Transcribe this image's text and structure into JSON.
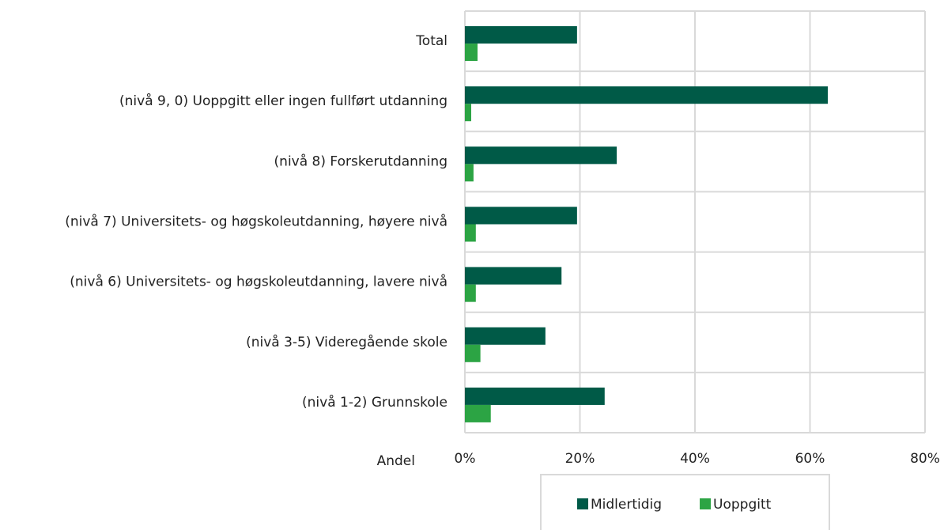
{
  "chart_data": {
    "type": "hbar",
    "categories": [
      "Total",
      "(nivå 9, 0) Uoppgitt eller ingen fullført utdanning",
      "(nivå 8) Forskerutdanning",
      "(nivå 7) Universitets- og høgskoleutdanning, høyere nivå",
      "(nivå 6) Universitets- og høgskoleutdanning, lavere nivå",
      "(nivå 3-5) Videregående skole",
      "(nivå 1-2) Grunnskole"
    ],
    "series": [
      {
        "name": "Midlertidig",
        "color": "#005a47",
        "values": [
          19.5,
          63.1,
          26.4,
          19.5,
          16.8,
          14.0,
          24.3
        ]
      },
      {
        "name": "Uoppgitt",
        "color": "#2ca444",
        "values": [
          2.2,
          1.1,
          1.5,
          1.9,
          1.9,
          2.7,
          4.5
        ]
      }
    ],
    "xlabel": "Andel",
    "xlim": [
      0,
      80
    ],
    "xticks": [
      {
        "value": 0,
        "label": "0%"
      },
      {
        "value": 20,
        "label": "20%"
      },
      {
        "value": 40,
        "label": "40%"
      },
      {
        "value": 60,
        "label": "60%"
      },
      {
        "value": 80,
        "label": "80%"
      }
    ],
    "grid": true,
    "legend": "bottom"
  }
}
